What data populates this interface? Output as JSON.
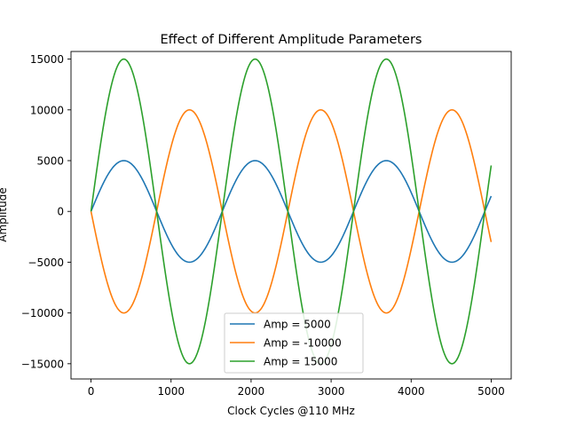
{
  "chart_data": {
    "type": "line",
    "title": "Effect of Different Amplitude Parameters",
    "xlabel": "Clock Cycles @110 MHz",
    "ylabel": "Amplitude",
    "xlim": [
      -250,
      5250
    ],
    "ylim": [
      -16500,
      15750
    ],
    "xticks": [
      0,
      1000,
      2000,
      3000,
      4000,
      5000
    ],
    "yticks": [
      -15000,
      -10000,
      -5000,
      0,
      5000,
      10000,
      15000
    ],
    "grid": false,
    "legend_position": "lower-center",
    "x_range": [
      0,
      5000
    ],
    "period": 1640,
    "series": [
      {
        "name": "Amp = 5000",
        "amplitude": 5000,
        "color": "#1f77b4"
      },
      {
        "name": "Amp = -10000",
        "amplitude": -10000,
        "color": "#ff7f0e"
      },
      {
        "name": "Amp = 15000",
        "amplitude": 15000,
        "color": "#2ca02c"
      }
    ]
  }
}
